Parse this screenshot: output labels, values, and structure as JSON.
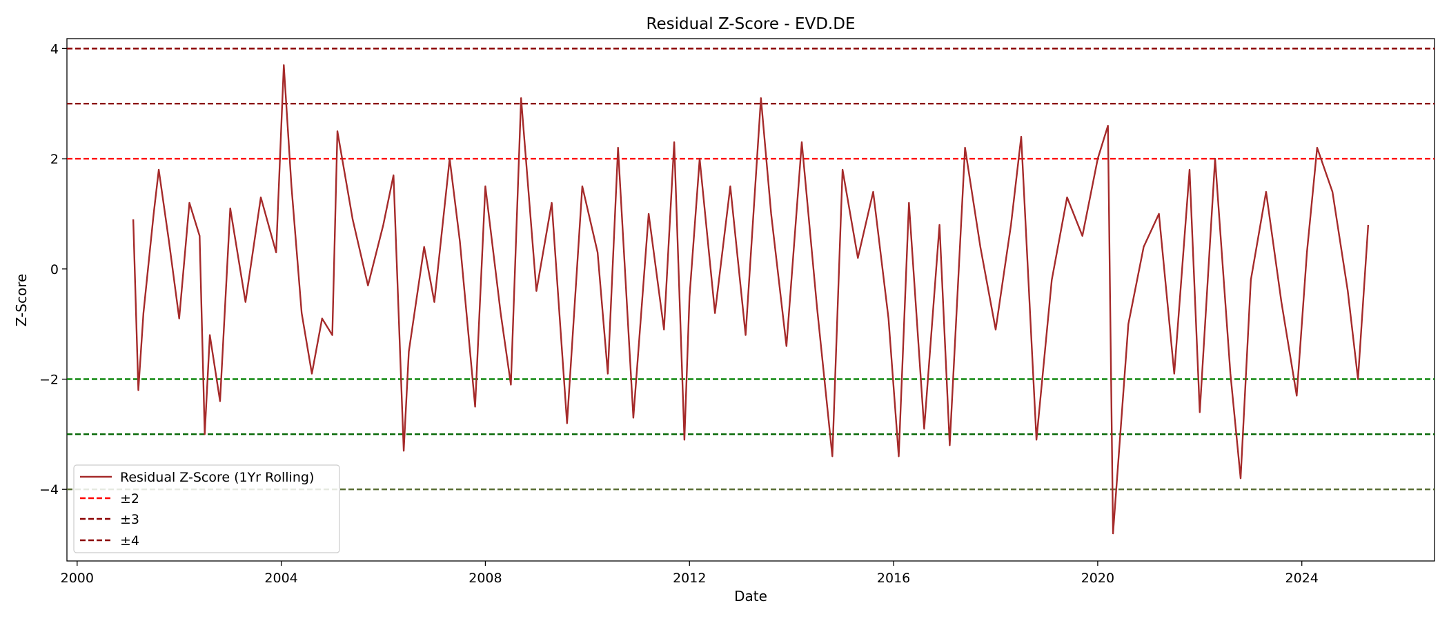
{
  "chart_data": {
    "type": "line",
    "title": "Residual Z-Score - EVD.DE",
    "xlabel": "Date",
    "ylabel": "Z-Score",
    "xlim": [
      1999.8,
      2026.6
    ],
    "ylim": [
      -5.3,
      4.18
    ],
    "x_ticks": [
      2000,
      2004,
      2008,
      2012,
      2016,
      2020,
      2024
    ],
    "y_ticks": [
      4,
      2,
      0,
      -2,
      -4
    ],
    "y_tick_labels": [
      "4",
      "2",
      "0",
      "−2",
      "−4"
    ],
    "grid": false,
    "legend_position": "lower-left",
    "series": [
      {
        "name": "Residual Z-Score (1Yr Rolling)",
        "color": "#a52a2a",
        "x": [
          2001.1,
          2001.2,
          2001.3,
          2001.5,
          2001.6,
          2001.8,
          2002.0,
          2002.2,
          2002.4,
          2002.5,
          2002.6,
          2002.8,
          2003.0,
          2003.3,
          2003.6,
          2003.9,
          2004.05,
          2004.2,
          2004.4,
          2004.6,
          2004.8,
          2005.0,
          2005.1,
          2005.4,
          2005.7,
          2006.0,
          2006.2,
          2006.4,
          2006.5,
          2006.8,
          2007.0,
          2007.3,
          2007.5,
          2007.8,
          2008.0,
          2008.3,
          2008.5,
          2008.7,
          2009.0,
          2009.3,
          2009.6,
          2009.9,
          2010.2,
          2010.4,
          2010.6,
          2010.9,
          2011.2,
          2011.5,
          2011.7,
          2011.9,
          2012.0,
          2012.2,
          2012.5,
          2012.8,
          2013.1,
          2013.4,
          2013.6,
          2013.9,
          2014.2,
          2014.5,
          2014.8,
          2015.0,
          2015.3,
          2015.6,
          2015.9,
          2016.1,
          2016.3,
          2016.6,
          2016.9,
          2017.1,
          2017.4,
          2017.7,
          2018.0,
          2018.3,
          2018.5,
          2018.8,
          2019.1,
          2019.4,
          2019.7,
          2020.0,
          2020.2,
          2020.3,
          2020.6,
          2020.9,
          2021.2,
          2021.5,
          2021.8,
          2022.0,
          2022.3,
          2022.6,
          2022.8,
          2023.0,
          2023.3,
          2023.6,
          2023.9,
          2024.1,
          2024.3,
          2024.6,
          2024.9,
          2025.1,
          2025.3
        ],
        "y": [
          0.9,
          -2.2,
          -0.8,
          1.0,
          1.8,
          0.5,
          -0.9,
          1.2,
          0.6,
          -3.0,
          -1.2,
          -2.4,
          1.1,
          -0.6,
          1.3,
          0.3,
          3.7,
          1.5,
          -0.8,
          -1.9,
          -0.9,
          -1.2,
          2.5,
          0.9,
          -0.3,
          0.8,
          1.7,
          -3.3,
          -1.5,
          0.4,
          -0.6,
          2.0,
          0.5,
          -2.5,
          1.5,
          -0.8,
          -2.1,
          3.1,
          -0.4,
          1.2,
          -2.8,
          1.5,
          0.3,
          -1.9,
          2.2,
          -2.7,
          1.0,
          -1.1,
          2.3,
          -3.1,
          -0.5,
          2.0,
          -0.8,
          1.5,
          -1.2,
          3.1,
          1.0,
          -1.4,
          2.3,
          -0.7,
          -3.4,
          1.8,
          0.2,
          1.4,
          -0.9,
          -3.4,
          1.2,
          -2.9,
          0.8,
          -3.2,
          2.2,
          0.4,
          -1.1,
          0.8,
          2.4,
          -3.1,
          -0.2,
          1.3,
          0.6,
          2.0,
          2.6,
          -4.8,
          -1.0,
          0.4,
          1.0,
          -1.9,
          1.8,
          -2.6,
          2.0,
          -1.9,
          -3.8,
          -0.2,
          1.4,
          -0.6,
          -2.3,
          0.3,
          2.2,
          1.4,
          -0.4,
          -2.0,
          0.8
        ]
      },
      {
        "name": "±2",
        "color": "#ff0000",
        "thresholds": [
          2,
          -2
        ],
        "neg_color": "#008000"
      },
      {
        "name": "±3",
        "color": "#8b0000",
        "thresholds": [
          3,
          -3
        ],
        "neg_color": "#006400"
      },
      {
        "name": "±4",
        "color": "#8b0000",
        "thresholds": [
          4,
          -4
        ],
        "neg_color": "#556b2f"
      }
    ]
  }
}
